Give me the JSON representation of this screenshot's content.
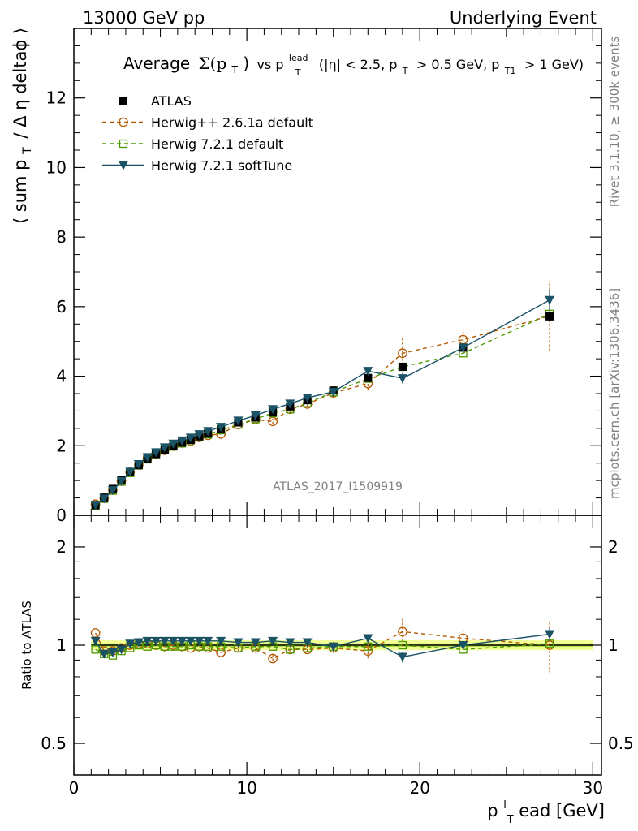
{
  "header": {
    "left": "13000 GeV pp",
    "right": "Underlying Event"
  },
  "title": {
    "prefix": "Average",
    "sigma": "Σ(p",
    "sigma_sub": "T",
    "sigma_close": ")",
    "vs": "vs p",
    "vs_sup": "lead",
    "vs_sub": "T",
    "cuts_1": "(|η| < 2.5, p",
    "cuts_1_sub": "T",
    "cuts_2": "> 0.5 GeV, p",
    "cuts_2_sub": "T1",
    "cuts_3": "> 1 GeV)"
  },
  "side_labels": {
    "rivet": "Rivet 3.1.10, ≥ 300k events",
    "mcplots": "mcplots.cern.ch [arXiv:1306.3436]"
  },
  "watermark": "ATLAS_2017_I1509919",
  "axes": {
    "ylabel_main": "⟨ sum p",
    "ylabel_main_sub": "T",
    "ylabel_main_rest": "/ Δ η deltaϕ ⟩",
    "ylabel_ratio": "Ratio to ATLAS",
    "xlabel": "p",
    "xlabel_sub": "T",
    "xlabel_sup": "l",
    "xlabel_rest": "ead [GeV]"
  },
  "colors": {
    "atlas": "#000000",
    "herwigpp": "#b35900",
    "herwig721": "#4c9900",
    "softtune": "#1a5266",
    "band_outer": "#f2ff99",
    "band_inner": "#b8e04d"
  },
  "chart_data": [
    {
      "type": "scatter",
      "panel": "main",
      "xlim": [
        0,
        30.5
      ],
      "ylim": [
        0,
        14
      ],
      "yticks": [
        0,
        2,
        4,
        6,
        8,
        10,
        12
      ],
      "ytick_labels": [
        "0",
        "2",
        "4",
        "6",
        "8",
        "10",
        "12"
      ],
      "legend_position": "top-left",
      "x": [
        1.25,
        1.75,
        2.25,
        2.75,
        3.25,
        3.75,
        4.25,
        4.75,
        5.25,
        5.75,
        6.25,
        6.75,
        7.25,
        7.75,
        8.5,
        9.5,
        10.5,
        11.5,
        12.5,
        13.5,
        15.0,
        17.0,
        19.0,
        22.5,
        27.5
      ],
      "series": [
        {
          "name": "ATLAS",
          "marker": "square-filled",
          "values": [
            0.29,
            0.51,
            0.76,
            1.01,
            1.24,
            1.44,
            1.62,
            1.76,
            1.89,
            1.99,
            2.09,
            2.17,
            2.27,
            2.35,
            2.47,
            2.67,
            2.81,
            2.96,
            3.13,
            3.31,
            3.59,
            3.95,
            4.27,
            4.82,
            5.72
          ]
        },
        {
          "name": "Herwig++ 2.6.1a default",
          "marker": "circle-open",
          "line": "dashed",
          "values": [
            0.32,
            0.49,
            0.73,
            0.99,
            1.24,
            1.45,
            1.63,
            1.77,
            1.87,
            1.99,
            2.08,
            2.13,
            2.24,
            2.3,
            2.34,
            2.61,
            2.75,
            2.7,
            3.05,
            3.2,
            3.52,
            3.79,
            4.66,
            5.05,
            5.73
          ]
        },
        {
          "name": "Herwig 7.2.1 default",
          "marker": "square-open",
          "line": "dashed",
          "values": [
            0.28,
            0.48,
            0.71,
            0.97,
            1.22,
            1.44,
            1.61,
            1.76,
            1.87,
            1.98,
            2.07,
            2.16,
            2.25,
            2.33,
            2.45,
            2.61,
            2.77,
            2.94,
            3.05,
            3.23,
            3.54,
            3.93,
            4.27,
            4.66,
            5.79
          ]
        },
        {
          "name": "Herwig 7.2.1 softTune",
          "marker": "triangle-down-filled",
          "line": "solid",
          "values": [
            0.3,
            0.48,
            0.72,
            0.98,
            1.25,
            1.47,
            1.67,
            1.81,
            1.95,
            2.06,
            2.15,
            2.23,
            2.33,
            2.42,
            2.54,
            2.72,
            2.87,
            3.05,
            3.21,
            3.38,
            3.55,
            4.15,
            3.94,
            4.82,
            6.19
          ]
        }
      ],
      "error_bars": {
        "Herwig++ 2.6.1a default": [
          0,
          0,
          0,
          0,
          0,
          0,
          0,
          0,
          0,
          0,
          0,
          0,
          0,
          0,
          0,
          0.05,
          0.06,
          0.08,
          0.1,
          0.1,
          0.15,
          0.2,
          0.45,
          0.3,
          1.0
        ],
        "Herwig 7.2.1 softTune": [
          0,
          0,
          0,
          0,
          0,
          0,
          0,
          0,
          0,
          0,
          0,
          0,
          0,
          0,
          0,
          0.03,
          0.03,
          0.04,
          0.05,
          0.06,
          0.08,
          0.1,
          0.15,
          0.15,
          0.3
        ]
      }
    },
    {
      "type": "scatter",
      "panel": "ratio",
      "scale": "log",
      "ylim": [
        0.4,
        2.5
      ],
      "yticks": [
        0.5,
        1,
        2
      ],
      "ytick_labels": [
        "0.5",
        "1",
        "2"
      ],
      "xticks": [
        0,
        10,
        20,
        30
      ],
      "xtick_labels": [
        "0",
        "10",
        "20",
        "30"
      ],
      "xlim": [
        0,
        30.5
      ],
      "x": [
        1.25,
        1.75,
        2.25,
        2.75,
        3.25,
        3.75,
        4.25,
        4.75,
        5.25,
        5.75,
        6.25,
        6.75,
        7.25,
        7.75,
        8.5,
        9.5,
        10.5,
        11.5,
        12.5,
        13.5,
        15.0,
        17.0,
        19.0,
        22.5,
        27.5
      ],
      "series": [
        {
          "name": "Herwig++ 2.6.1a default",
          "values": [
            1.09,
            0.96,
            0.96,
            0.98,
            1.0,
            1.01,
            1.01,
            1.0,
            0.99,
            1.0,
            0.99,
            0.98,
            0.99,
            0.98,
            0.95,
            0.98,
            0.98,
            0.91,
            0.97,
            0.97,
            0.98,
            0.96,
            1.1,
            1.05,
            1.0
          ]
        },
        {
          "name": "Herwig 7.2.1 default",
          "values": [
            0.97,
            0.94,
            0.93,
            0.96,
            0.98,
            1.0,
            0.99,
            1.0,
            0.99,
            0.99,
            0.99,
            1.0,
            0.99,
            0.99,
            0.99,
            0.98,
            0.99,
            0.99,
            0.97,
            0.98,
            0.99,
            0.99,
            1.0,
            0.97,
            1.01
          ]
        },
        {
          "name": "Herwig 7.2.1 softTune",
          "values": [
            1.03,
            0.94,
            0.95,
            0.97,
            1.01,
            1.02,
            1.03,
            1.03,
            1.03,
            1.03,
            1.03,
            1.03,
            1.03,
            1.03,
            1.03,
            1.02,
            1.02,
            1.03,
            1.02,
            1.02,
            0.99,
            1.05,
            0.92,
            1.0,
            1.08
          ]
        }
      ]
    }
  ]
}
